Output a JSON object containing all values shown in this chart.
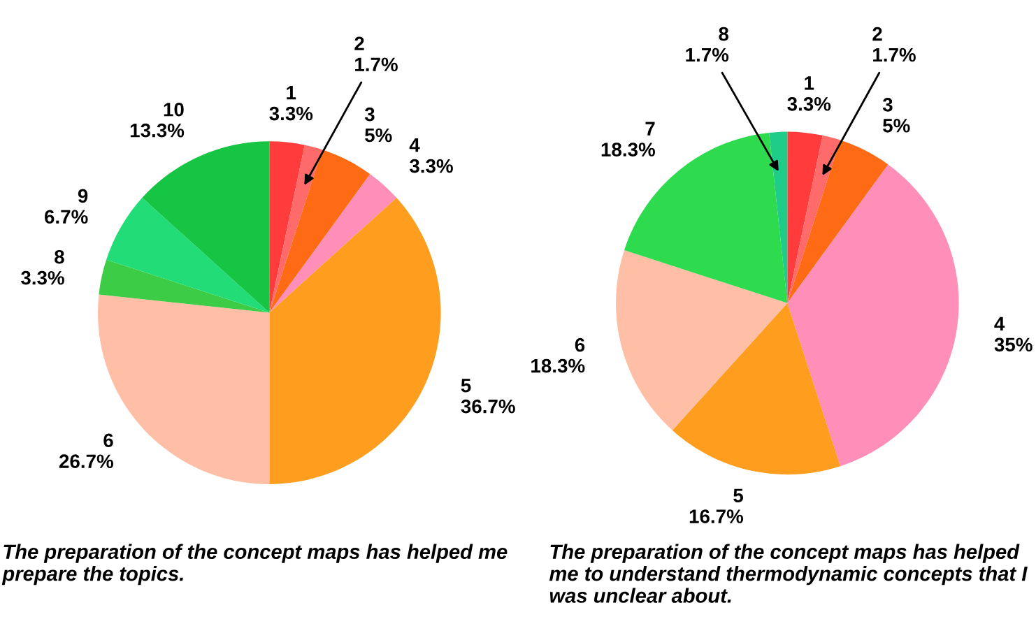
{
  "chart_data": [
    {
      "type": "pie",
      "categories": [
        "1",
        "2",
        "3",
        "4",
        "5",
        "6",
        "8",
        "9",
        "10"
      ],
      "values": [
        3.3,
        1.7,
        5,
        3.3,
        36.7,
        26.7,
        3.3,
        6.7,
        13.3
      ],
      "value_labels": [
        "3.3%",
        "1.7%",
        "5%",
        "3.3%",
        "36.7%",
        "26.7%",
        "3.3%",
        "6.7%",
        "13.3%"
      ],
      "colors": [
        "#ff3b3b",
        "#ff6b6b",
        "#ff6a14",
        "#ff8fb8",
        "#ff9e1e",
        "#ffbfa6",
        "#3ccc45",
        "#22dd77",
        "#16c544"
      ],
      "annotations": [
        "The preparation of the concept maps has helped me prepare the topics."
      ]
    },
    {
      "type": "pie",
      "categories": [
        "1",
        "2",
        "3",
        "4",
        "5",
        "6",
        "7",
        "8"
      ],
      "values": [
        3.3,
        1.7,
        5,
        35,
        16.7,
        18.3,
        18.3,
        1.7
      ],
      "value_labels": [
        "3.3%",
        "1.7%",
        "5%",
        "35%",
        "16.7%",
        "18.3%",
        "18.3%",
        "1.7%"
      ],
      "colors": [
        "#ff3b3b",
        "#ff6b6b",
        "#ff6a14",
        "#ff8fb8",
        "#ff9e1e",
        "#ffbfa6",
        "#2edb4f",
        "#1fcc88"
      ],
      "annotations": [
        "The preparation of the concept maps has helped me to understand thermodynamic concepts that I was unclear about."
      ]
    }
  ]
}
